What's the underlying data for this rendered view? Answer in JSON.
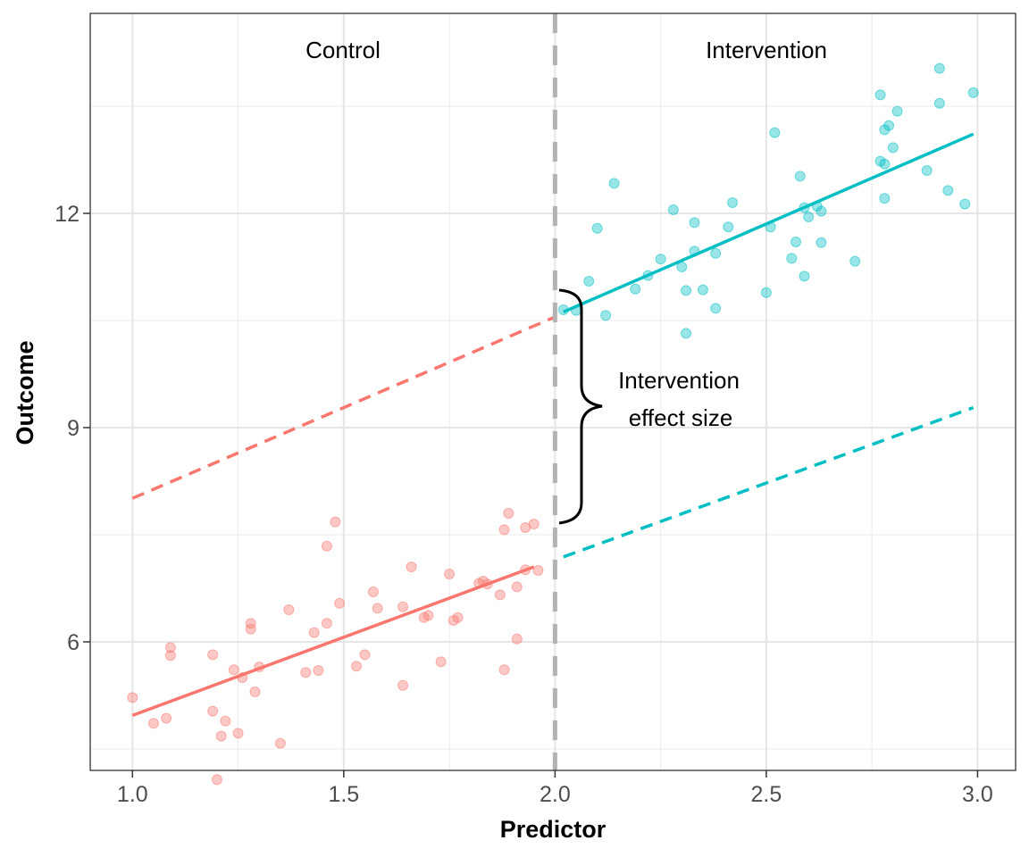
{
  "chart_data": {
    "type": "scatter",
    "title": "",
    "xlabel": "Predictor",
    "ylabel": "Outcome",
    "xlim": [
      0.9,
      3.09
    ],
    "ylim": [
      4.2,
      14.8
    ],
    "xticks": [
      1.0,
      1.5,
      2.0,
      2.5,
      3.0
    ],
    "xtick_labels": [
      "1.0",
      "1.5",
      "2.0",
      "2.5",
      "3.0"
    ],
    "yticks": [
      6,
      9,
      12
    ],
    "ytick_labels": [
      "6",
      "9",
      "12"
    ],
    "grid": true,
    "legend": "none",
    "cutoff": 2.0,
    "colors": {
      "control": "#F8766D",
      "intervention": "#00BFC4",
      "cutoff_line": "#b3b3b3"
    },
    "region_labels": [
      "Control",
      "Intervention"
    ],
    "annotation": [
      "Intervention",
      "effect size"
    ],
    "series": [
      {
        "group": "control",
        "points": [
          [
            1.0,
            5.22
          ],
          [
            1.05,
            4.86
          ],
          [
            1.08,
            4.93
          ],
          [
            1.09,
            5.92
          ],
          [
            1.09,
            5.81
          ],
          [
            1.19,
            5.82
          ],
          [
            1.19,
            5.03
          ],
          [
            1.2,
            4.07
          ],
          [
            1.21,
            4.68
          ],
          [
            1.22,
            4.89
          ],
          [
            1.24,
            5.61
          ],
          [
            1.25,
            4.72
          ],
          [
            1.26,
            5.5
          ],
          [
            1.28,
            6.26
          ],
          [
            1.28,
            6.18
          ],
          [
            1.29,
            5.3
          ],
          [
            1.3,
            5.65
          ],
          [
            1.35,
            4.58
          ],
          [
            1.37,
            6.45
          ],
          [
            1.41,
            5.57
          ],
          [
            1.43,
            6.13
          ],
          [
            1.44,
            5.6
          ],
          [
            1.46,
            6.26
          ],
          [
            1.46,
            7.34
          ],
          [
            1.48,
            7.68
          ],
          [
            1.49,
            6.54
          ],
          [
            1.53,
            5.66
          ],
          [
            1.55,
            5.82
          ],
          [
            1.57,
            6.7
          ],
          [
            1.58,
            6.47
          ],
          [
            1.64,
            6.49
          ],
          [
            1.64,
            5.39
          ],
          [
            1.66,
            7.05
          ],
          [
            1.69,
            6.34
          ],
          [
            1.7,
            6.37
          ],
          [
            1.73,
            5.72
          ],
          [
            1.75,
            6.95
          ],
          [
            1.76,
            6.3
          ],
          [
            1.77,
            6.34
          ],
          [
            1.82,
            6.82
          ],
          [
            1.83,
            6.85
          ],
          [
            1.84,
            6.81
          ],
          [
            1.87,
            6.66
          ],
          [
            1.88,
            7.57
          ],
          [
            1.88,
            5.61
          ],
          [
            1.89,
            7.8
          ],
          [
            1.91,
            6.04
          ],
          [
            1.91,
            6.77
          ],
          [
            1.93,
            7.01
          ],
          [
            1.93,
            7.6
          ],
          [
            1.95,
            7.65
          ],
          [
            1.96,
            7.0
          ]
        ],
        "fit": {
          "x": [
            1.0,
            1.95
          ],
          "y": [
            4.97,
            7.05
          ]
        },
        "counterfactual": {
          "x": [
            1.0,
            2.0
          ],
          "y": [
            8.01,
            10.55
          ]
        }
      },
      {
        "group": "intervention",
        "points": [
          [
            2.02,
            10.65
          ],
          [
            2.05,
            10.64
          ],
          [
            2.08,
            11.05
          ],
          [
            2.1,
            11.79
          ],
          [
            2.12,
            10.57
          ],
          [
            2.14,
            12.42
          ],
          [
            2.19,
            10.94
          ],
          [
            2.22,
            11.13
          ],
          [
            2.25,
            11.36
          ],
          [
            2.28,
            12.05
          ],
          [
            2.3,
            11.25
          ],
          [
            2.31,
            10.92
          ],
          [
            2.31,
            10.32
          ],
          [
            2.33,
            11.47
          ],
          [
            2.33,
            11.87
          ],
          [
            2.35,
            10.93
          ],
          [
            2.38,
            11.44
          ],
          [
            2.38,
            10.67
          ],
          [
            2.41,
            11.81
          ],
          [
            2.42,
            12.15
          ],
          [
            2.5,
            10.89
          ],
          [
            2.51,
            11.81
          ],
          [
            2.52,
            13.13
          ],
          [
            2.56,
            11.37
          ],
          [
            2.57,
            11.6
          ],
          [
            2.58,
            12.52
          ],
          [
            2.59,
            11.12
          ],
          [
            2.59,
            12.08
          ],
          [
            2.6,
            11.95
          ],
          [
            2.62,
            12.1
          ],
          [
            2.63,
            11.59
          ],
          [
            2.63,
            12.03
          ],
          [
            2.71,
            11.33
          ],
          [
            2.77,
            12.73
          ],
          [
            2.77,
            13.66
          ],
          [
            2.78,
            12.21
          ],
          [
            2.78,
            12.69
          ],
          [
            2.78,
            13.17
          ],
          [
            2.79,
            13.23
          ],
          [
            2.8,
            12.92
          ],
          [
            2.81,
            13.43
          ],
          [
            2.88,
            12.6
          ],
          [
            2.91,
            14.03
          ],
          [
            2.91,
            13.54
          ],
          [
            2.93,
            12.32
          ],
          [
            2.97,
            12.13
          ],
          [
            2.99,
            13.69
          ]
        ],
        "fit": {
          "x": [
            2.02,
            2.99
          ],
          "y": [
            10.62,
            13.11
          ]
        },
        "counterfactual": {
          "x": [
            2.02,
            2.99
          ],
          "y": [
            7.19,
            9.28
          ]
        }
      }
    ]
  }
}
